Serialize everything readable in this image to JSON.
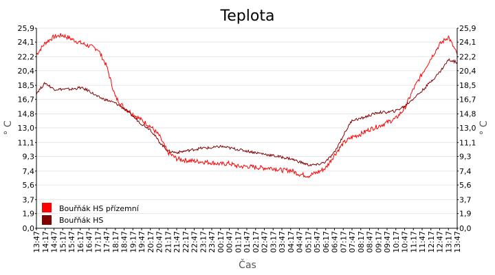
{
  "chart_data": {
    "type": "line",
    "title": "Teplota",
    "xlabel": "Čas",
    "ylabel": "° C",
    "ylim": [
      0,
      25.9
    ],
    "yticks": [
      "25,9",
      "24,1",
      "22,2",
      "20,4",
      "18,5",
      "16,7",
      "14,8",
      "13,0",
      "11,1",
      "9,3",
      "7,4",
      "5,6",
      "3,7",
      "1,9",
      "0,0"
    ],
    "ytick_values": [
      25.9,
      24.1,
      22.2,
      20.4,
      18.5,
      16.7,
      14.8,
      13.0,
      11.1,
      9.3,
      7.4,
      5.6,
      3.7,
      1.9,
      0.0
    ],
    "xticks": [
      "13:47",
      "14:17",
      "14:47",
      "15:17",
      "15:47",
      "16:17",
      "16:47",
      "17:17",
      "17:47",
      "18:17",
      "18:47",
      "19:17",
      "19:47",
      "20:17",
      "20:47",
      "21:17",
      "21:47",
      "22:17",
      "22:47",
      "23:17",
      "23:47",
      "00:17",
      "00:47",
      "01:17",
      "01:47",
      "02:17",
      "02:47",
      "03:17",
      "03:47",
      "04:17",
      "04:47",
      "05:17",
      "05:47",
      "06:17",
      "06:47",
      "07:17",
      "07:47",
      "08:17",
      "08:47",
      "09:17",
      "09:47",
      "10:17",
      "10:47",
      "11:17",
      "11:47",
      "12:17",
      "12:47",
      "13:17",
      "13:47"
    ],
    "grid": true,
    "legend": "bottom-left",
    "series": [
      {
        "name": "Bouřňák HS přízemní",
        "color": "#ff0000",
        "values": [
          22.5,
          24.0,
          24.8,
          25.0,
          24.5,
          24.0,
          23.6,
          23.2,
          21.0,
          17.0,
          15.6,
          14.8,
          14.0,
          13.2,
          12.0,
          9.8,
          9.0,
          8.8,
          8.7,
          8.6,
          8.5,
          8.3,
          8.4,
          8.0,
          8.0,
          7.9,
          7.8,
          7.8,
          7.5,
          7.5,
          7.0,
          6.8,
          7.2,
          7.8,
          9.5,
          11.0,
          11.8,
          12.2,
          12.8,
          13.2,
          13.7,
          14.2,
          15.5,
          18.0,
          20.0,
          22.0,
          23.8,
          24.8,
          22.5
        ]
      },
      {
        "name": "Bouřňák HS",
        "color": "#800000",
        "values": [
          17.5,
          18.8,
          18.0,
          18.0,
          18.0,
          18.2,
          17.8,
          17.0,
          16.6,
          16.2,
          15.5,
          14.5,
          13.5,
          12.8,
          11.2,
          10.0,
          9.8,
          10.0,
          10.2,
          10.4,
          10.4,
          10.6,
          10.4,
          10.2,
          10.0,
          9.8,
          9.6,
          9.4,
          9.2,
          9.0,
          8.6,
          8.2,
          8.2,
          8.6,
          9.8,
          12.0,
          14.0,
          14.2,
          14.6,
          15.0,
          15.0,
          15.2,
          15.8,
          16.8,
          17.8,
          19.0,
          20.2,
          21.8,
          21.5
        ]
      }
    ]
  }
}
